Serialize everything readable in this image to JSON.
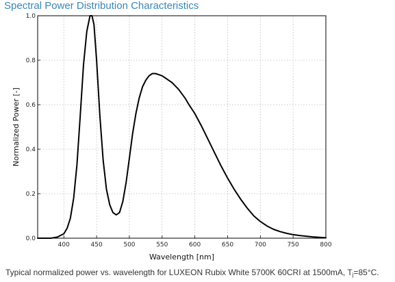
{
  "title": "Spectral Power Distribution Characteristics",
  "caption": {
    "prefix": "Typical normalized power vs. wavelength for LUXEON Rubix White 5700K 60CRI at 1500mA, T",
    "subscript": "j",
    "suffix": "=85°C."
  },
  "colors": {
    "title": "#3a86b5",
    "line": "#000000",
    "grid": "#bbbbbb"
  },
  "chart_data": {
    "type": "line",
    "xlabel": "Wavelength [nm]",
    "ylabel": "Normalized Power [-]",
    "xlim": [
      360,
      800
    ],
    "ylim": [
      0,
      1.0
    ],
    "x_ticks": [
      400,
      450,
      500,
      550,
      600,
      650,
      700,
      750,
      800
    ],
    "y_ticks": [
      0.0,
      0.2,
      0.4,
      0.6,
      0.8,
      1.0
    ],
    "x_tick_labels": [
      "400",
      "450",
      "500",
      "550",
      "600",
      "650",
      "700",
      "750",
      "800"
    ],
    "y_tick_labels": [
      "0.0",
      "0.2",
      "0.4",
      "0.6",
      "0.8",
      "1.0"
    ],
    "grid": true,
    "series": [
      {
        "x": [
          360,
          380,
          390,
          400,
          405,
          410,
          415,
          420,
          425,
          430,
          435,
          440,
          443,
          446,
          450,
          455,
          460,
          465,
          470,
          475,
          480,
          485,
          490,
          495,
          500,
          505,
          510,
          515,
          520,
          525,
          530,
          535,
          540,
          545,
          550,
          555,
          560,
          565,
          570,
          575,
          580,
          585,
          590,
          600,
          610,
          620,
          630,
          640,
          650,
          660,
          670,
          680,
          690,
          700,
          710,
          720,
          730,
          740,
          750,
          760,
          770,
          780,
          790,
          800
        ],
        "y": [
          0.0,
          0.0,
          0.005,
          0.02,
          0.045,
          0.09,
          0.18,
          0.33,
          0.55,
          0.78,
          0.93,
          1.0,
          1.0,
          0.96,
          0.8,
          0.55,
          0.35,
          0.22,
          0.15,
          0.115,
          0.105,
          0.115,
          0.165,
          0.25,
          0.36,
          0.47,
          0.56,
          0.63,
          0.68,
          0.71,
          0.73,
          0.74,
          0.74,
          0.735,
          0.73,
          0.72,
          0.71,
          0.7,
          0.685,
          0.67,
          0.65,
          0.63,
          0.605,
          0.56,
          0.505,
          0.445,
          0.385,
          0.325,
          0.27,
          0.22,
          0.175,
          0.135,
          0.1,
          0.075,
          0.055,
          0.04,
          0.03,
          0.022,
          0.016,
          0.012,
          0.009,
          0.006,
          0.004,
          0.002
        ]
      }
    ]
  }
}
